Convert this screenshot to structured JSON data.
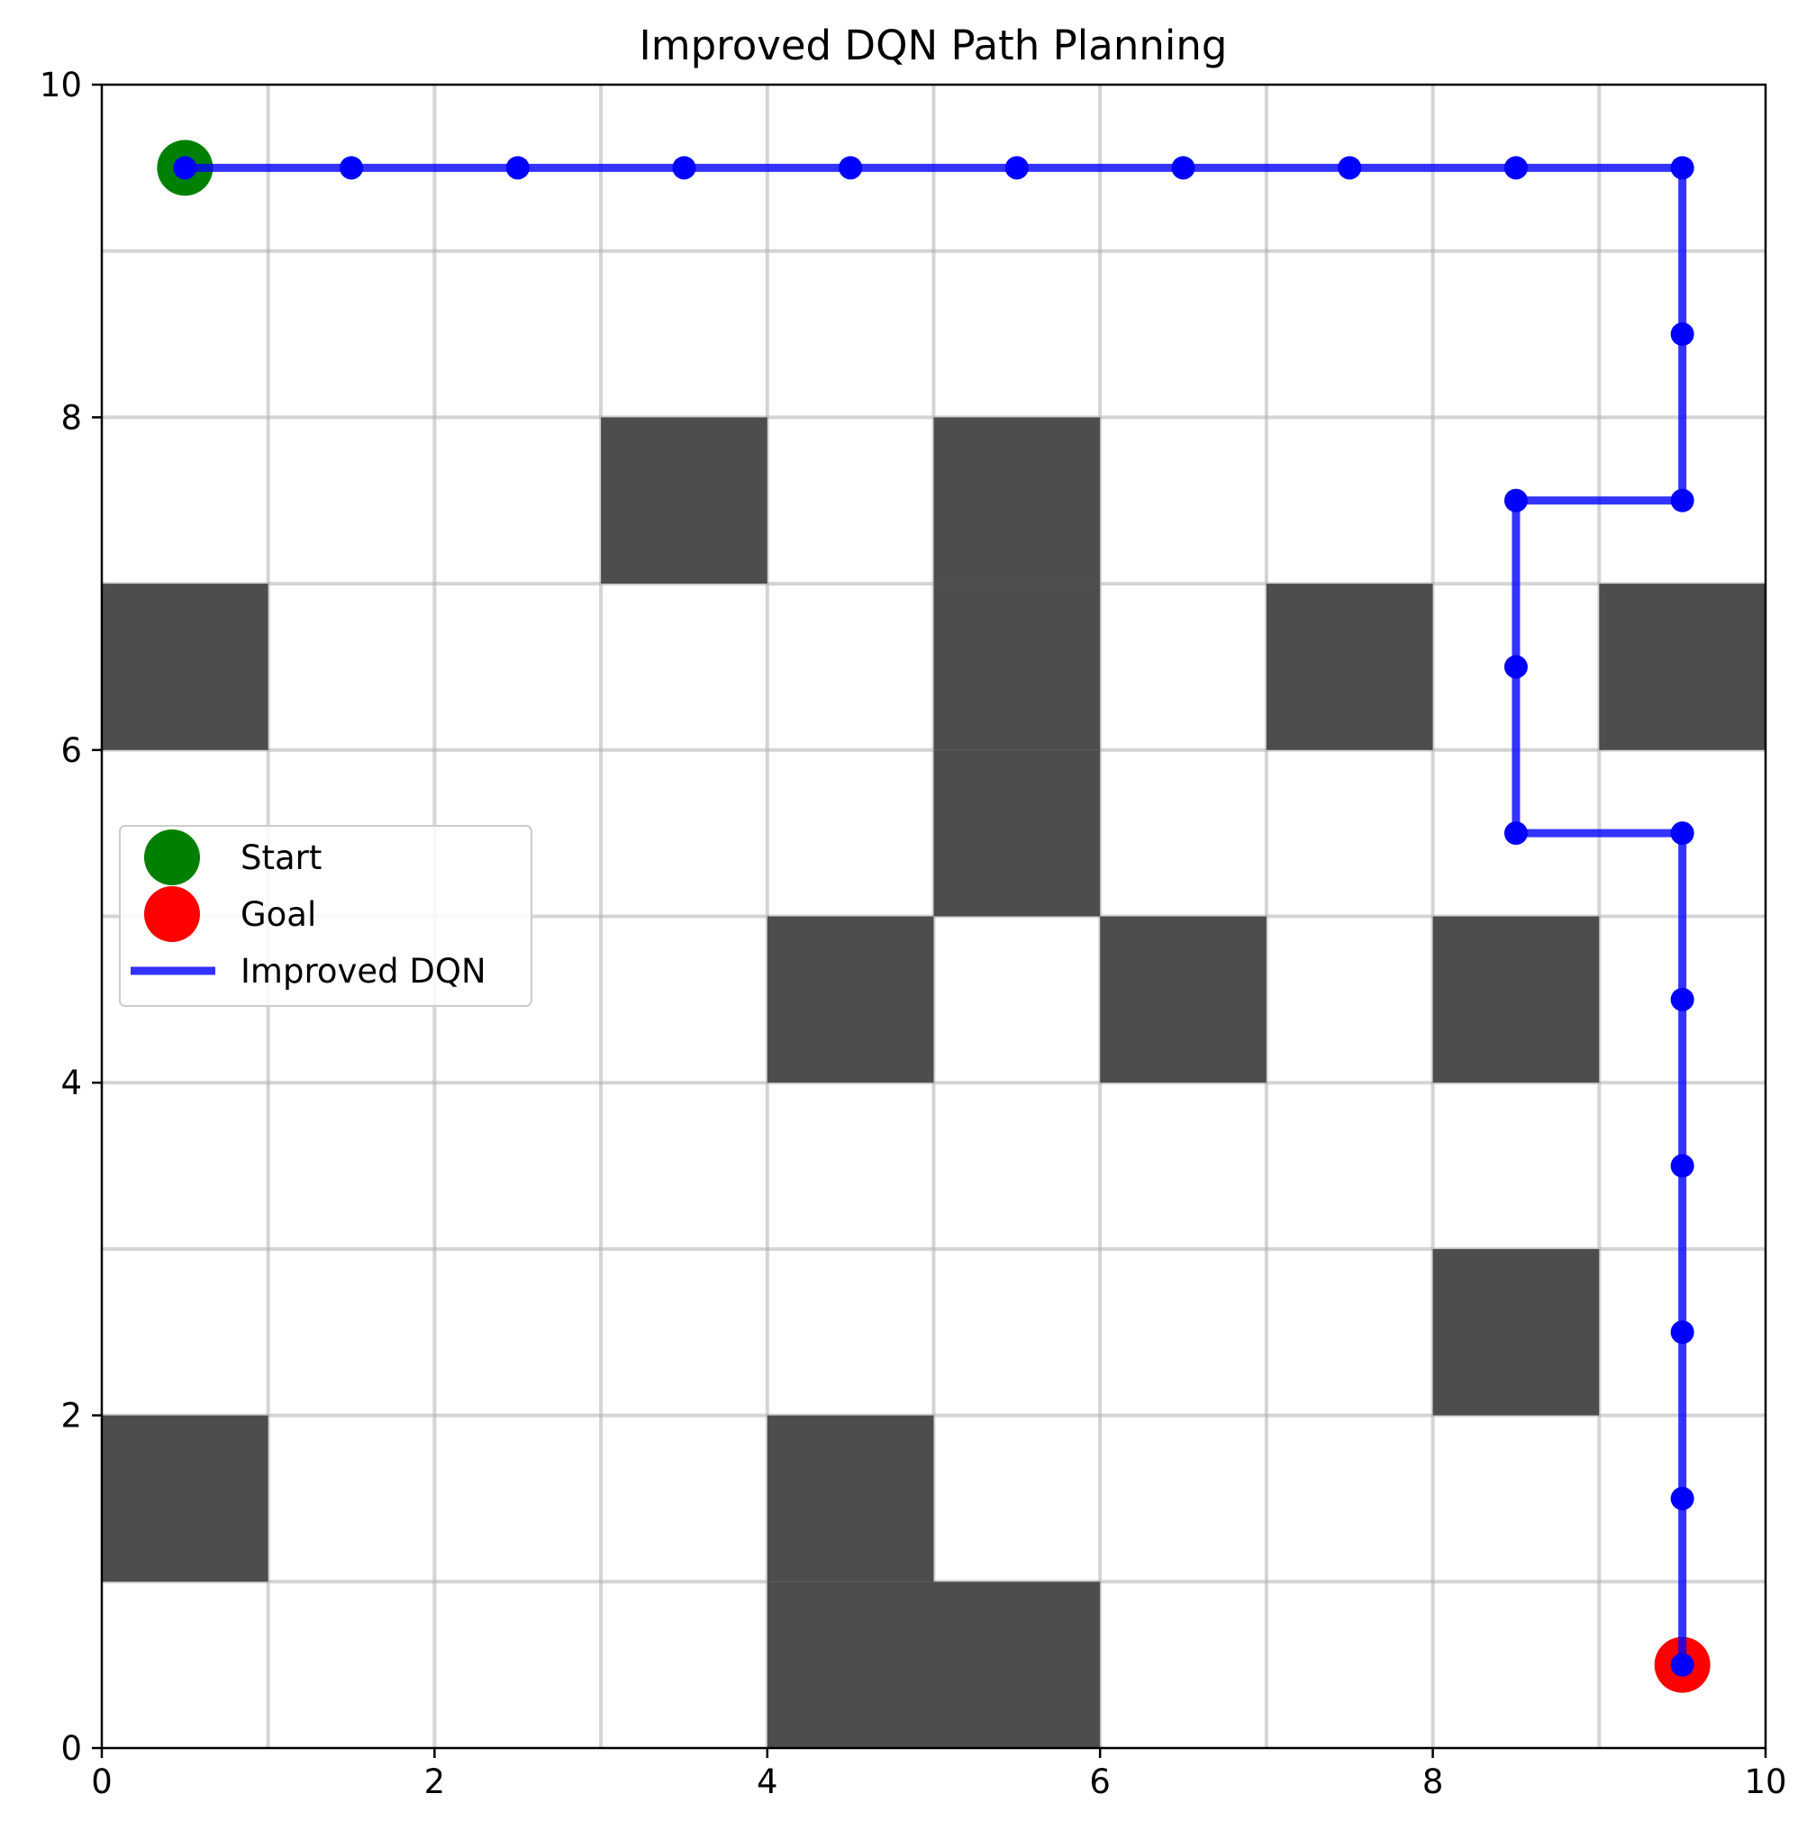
{
  "chart_data": {
    "type": "scatter",
    "title": "Improved DQN Path Planning",
    "xlabel": "",
    "ylabel": "",
    "xlim": [
      0,
      10
    ],
    "ylim": [
      0,
      10
    ],
    "xticks": [
      "0",
      "2",
      "4",
      "6",
      "8",
      "10"
    ],
    "yticks": [
      "0",
      "2",
      "4",
      "6",
      "8",
      "10"
    ],
    "grid": true,
    "grid_step": 1,
    "obstacles": [
      {
        "x": 0,
        "y": 6
      },
      {
        "x": 0,
        "y": 1
      },
      {
        "x": 3,
        "y": 7
      },
      {
        "x": 4,
        "y": 4
      },
      {
        "x": 4,
        "y": 1
      },
      {
        "x": 4,
        "y": 0
      },
      {
        "x": 5,
        "y": 7
      },
      {
        "x": 5,
        "y": 6
      },
      {
        "x": 5,
        "y": 5
      },
      {
        "x": 5,
        "y": 0
      },
      {
        "x": 6,
        "y": 4
      },
      {
        "x": 7,
        "y": 6
      },
      {
        "x": 8,
        "y": 4
      },
      {
        "x": 8,
        "y": 2
      },
      {
        "x": 9,
        "y": 6
      }
    ],
    "obstacle_color": "#4d4d4d",
    "series": [
      {
        "name": "Start",
        "type": "point",
        "color": "#008000",
        "points": [
          {
            "x": 0.5,
            "y": 9.5
          }
        ]
      },
      {
        "name": "Goal",
        "type": "point",
        "color": "#ff0000",
        "points": [
          {
            "x": 9.5,
            "y": 0.5
          }
        ]
      },
      {
        "name": "Improved DQN",
        "type": "line",
        "color": "#0000ff",
        "points": [
          {
            "x": 0.5,
            "y": 9.5
          },
          {
            "x": 1.5,
            "y": 9.5
          },
          {
            "x": 2.5,
            "y": 9.5
          },
          {
            "x": 3.5,
            "y": 9.5
          },
          {
            "x": 4.5,
            "y": 9.5
          },
          {
            "x": 5.5,
            "y": 9.5
          },
          {
            "x": 6.5,
            "y": 9.5
          },
          {
            "x": 7.5,
            "y": 9.5
          },
          {
            "x": 8.5,
            "y": 9.5
          },
          {
            "x": 9.5,
            "y": 9.5
          },
          {
            "x": 9.5,
            "y": 8.5
          },
          {
            "x": 9.5,
            "y": 7.5
          },
          {
            "x": 8.5,
            "y": 7.5
          },
          {
            "x": 8.5,
            "y": 6.5
          },
          {
            "x": 8.5,
            "y": 5.5
          },
          {
            "x": 9.5,
            "y": 5.5
          },
          {
            "x": 9.5,
            "y": 4.5
          },
          {
            "x": 9.5,
            "y": 3.5
          },
          {
            "x": 9.5,
            "y": 2.5
          },
          {
            "x": 9.5,
            "y": 1.5
          },
          {
            "x": 9.5,
            "y": 0.5
          }
        ]
      }
    ],
    "legend": {
      "placement": "center-left",
      "entries": [
        {
          "label": "Start",
          "marker": "circle",
          "color": "#008000"
        },
        {
          "label": "Goal",
          "marker": "circle",
          "color": "#ff0000"
        },
        {
          "label": "Improved DQN",
          "marker": "line",
          "color": "#0000ff"
        }
      ]
    }
  }
}
